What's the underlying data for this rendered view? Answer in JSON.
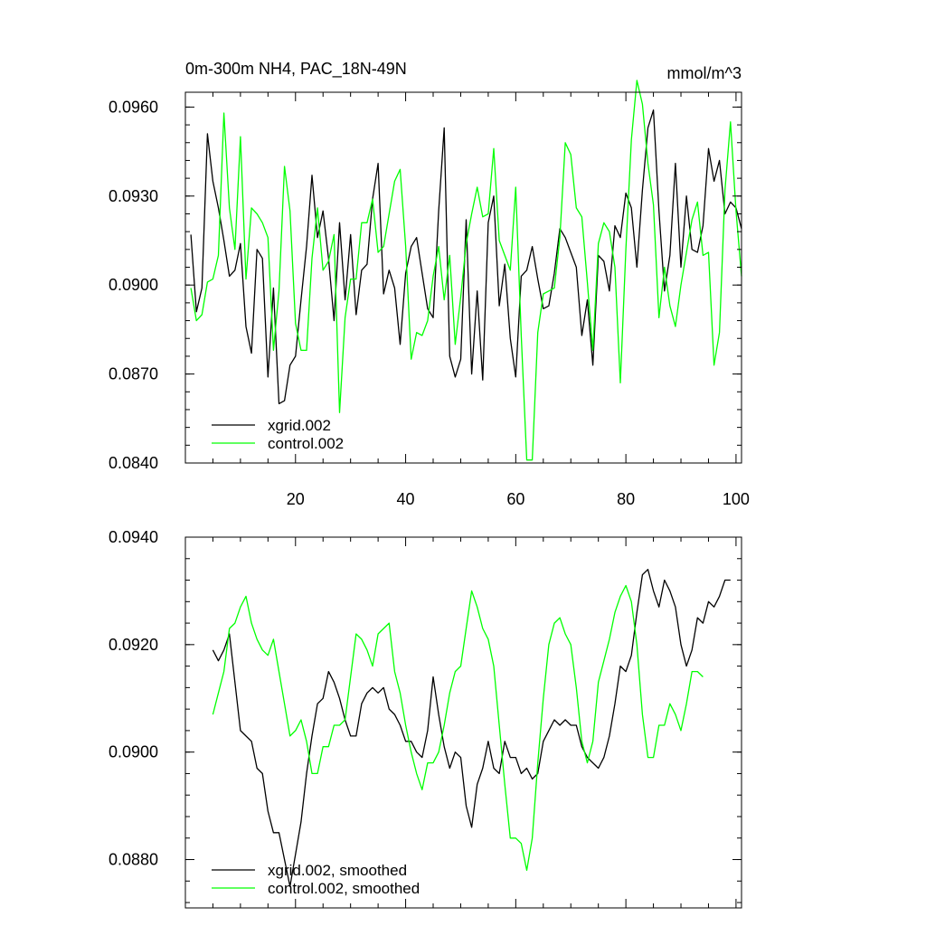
{
  "colors": {
    "xgrid": "#000000",
    "control": "#00ff00"
  },
  "chart_data": [
    {
      "type": "line",
      "title": "0m-300m NH4, PAC_18N-49N",
      "units": "mmol/m^3",
      "xlabel": "",
      "ylabel": "",
      "xlim": [
        0,
        101
      ],
      "ylim": [
        0.084,
        0.0965
      ],
      "grid": false,
      "legend_placement": "bottom-left",
      "x_ticks": [
        20,
        40,
        60,
        80,
        100
      ],
      "x_tick_labels": [
        "20",
        "40",
        "60",
        "80",
        "100"
      ],
      "y_ticks": [
        0.084,
        0.087,
        0.09,
        0.093,
        0.096
      ],
      "y_tick_labels": [
        "0.0840",
        "0.0870",
        "0.0900",
        "0.0930",
        "0.0960"
      ],
      "x_start": 1,
      "series": [
        {
          "name": "xgrid.002",
          "color_key": "xgrid",
          "values": [
            0.0917,
            0.0891,
            0.0899,
            0.0951,
            0.0935,
            0.0926,
            0.0915,
            0.0903,
            0.0905,
            0.0914,
            0.0886,
            0.0877,
            0.0912,
            0.0909,
            0.0869,
            0.0899,
            0.086,
            0.0861,
            0.0873,
            0.0876,
            0.0895,
            0.0913,
            0.0937,
            0.0916,
            0.0925,
            0.0909,
            0.0888,
            0.0921,
            0.0895,
            0.0917,
            0.089,
            0.0905,
            0.0907,
            0.0929,
            0.0941,
            0.0897,
            0.0905,
            0.0899,
            0.088,
            0.0904,
            0.0913,
            0.0916,
            0.0904,
            0.0892,
            0.0889,
            0.0925,
            0.0953,
            0.0876,
            0.0869,
            0.0875,
            0.0922,
            0.087,
            0.0898,
            0.0868,
            0.0921,
            0.093,
            0.0893,
            0.0907,
            0.0882,
            0.0869,
            0.0903,
            0.0905,
            0.0913,
            0.0902,
            0.0892,
            0.0893,
            0.0904,
            0.0919,
            0.0916,
            0.0911,
            0.0906,
            0.0883,
            0.0895,
            0.0873,
            0.091,
            0.0908,
            0.0898,
            0.092,
            0.0916,
            0.0931,
            0.0926,
            0.0906,
            0.0932,
            0.0953,
            0.0959,
            0.0925,
            0.0898,
            0.091,
            0.0941,
            0.0906,
            0.093,
            0.0912,
            0.0911,
            0.092,
            0.0946,
            0.0935,
            0.0942,
            0.0924,
            0.0928,
            0.0926,
            0.0919
          ]
        },
        {
          "name": "control.002",
          "color_key": "control",
          "values": [
            0.0899,
            0.0888,
            0.089,
            0.0901,
            0.0902,
            0.091,
            0.0958,
            0.0926,
            0.0912,
            0.095,
            0.0902,
            0.0926,
            0.0924,
            0.0921,
            0.0916,
            0.0878,
            0.0898,
            0.094,
            0.0925,
            0.0887,
            0.0878,
            0.0878,
            0.0909,
            0.0926,
            0.0905,
            0.0908,
            0.0917,
            0.0857,
            0.0889,
            0.0902,
            0.0902,
            0.0921,
            0.0921,
            0.0929,
            0.0911,
            0.0913,
            0.0924,
            0.0935,
            0.0939,
            0.0913,
            0.0875,
            0.0884,
            0.0883,
            0.0888,
            0.0903,
            0.0913,
            0.0895,
            0.091,
            0.088,
            0.0896,
            0.0914,
            0.0924,
            0.0933,
            0.0923,
            0.0924,
            0.0946,
            0.0915,
            0.091,
            0.0905,
            0.0933,
            0.0883,
            0.0841,
            0.0841,
            0.0884,
            0.0897,
            0.0898,
            0.0899,
            0.0916,
            0.0948,
            0.0944,
            0.0926,
            0.0923,
            0.0901,
            0.0878,
            0.0914,
            0.0921,
            0.0918,
            0.0906,
            0.0867,
            0.0912,
            0.0949,
            0.0969,
            0.0961,
            0.0941,
            0.0927,
            0.0889,
            0.0906,
            0.0893,
            0.0886,
            0.09,
            0.0911,
            0.0922,
            0.0928,
            0.091,
            0.0911,
            0.0873,
            0.0884,
            0.0932,
            0.0955,
            0.0925,
            0.0903
          ]
        }
      ]
    },
    {
      "type": "line",
      "title": "",
      "xlabel": "",
      "ylabel": "",
      "xlim": [
        0,
        101
      ],
      "ylim": [
        0.0871,
        0.094
      ],
      "grid": false,
      "legend_placement": "bottom-left",
      "x_ticks": [
        20,
        40,
        60,
        80,
        100
      ],
      "x_tick_labels": [],
      "y_ticks": [
        0.088,
        0.09,
        0.092,
        0.094
      ],
      "y_tick_labels": [
        "0.0880",
        "0.0900",
        "0.0920",
        "0.0940"
      ],
      "x_start": 5,
      "series": [
        {
          "name": "xgrid.002, smoothed",
          "color_key": "xgrid",
          "values": [
            0.0919,
            0.0917,
            0.0919,
            0.0922,
            0.0913,
            0.0904,
            0.0903,
            0.0902,
            0.0897,
            0.0896,
            0.0889,
            0.0885,
            0.0885,
            0.088,
            0.0875,
            0.0881,
            0.0887,
            0.0896,
            0.0903,
            0.0909,
            0.091,
            0.0915,
            0.0913,
            0.091,
            0.0906,
            0.0903,
            0.0903,
            0.0909,
            0.0911,
            0.0912,
            0.0911,
            0.0912,
            0.0908,
            0.0907,
            0.0905,
            0.0902,
            0.0902,
            0.09,
            0.0899,
            0.0904,
            0.0914,
            0.0907,
            0.0901,
            0.0897,
            0.09,
            0.0899,
            0.089,
            0.0886,
            0.0894,
            0.0897,
            0.0902,
            0.0897,
            0.0896,
            0.0902,
            0.0899,
            0.0899,
            0.0896,
            0.0897,
            0.0895,
            0.0896,
            0.0902,
            0.0904,
            0.0906,
            0.0905,
            0.0906,
            0.0905,
            0.0905,
            0.0901,
            0.0899,
            0.0898,
            0.0897,
            0.0899,
            0.0903,
            0.0909,
            0.0916,
            0.0915,
            0.0918,
            0.0926,
            0.0933,
            0.0934,
            0.093,
            0.0927,
            0.0932,
            0.093,
            0.0927,
            0.092,
            0.0916,
            0.0919,
            0.0925,
            0.0924,
            0.0928,
            0.0927,
            0.0929,
            0.0932,
            0.0932
          ]
        },
        {
          "name": "control.002, smoothed",
          "color_key": "control",
          "values": [
            0.0907,
            0.0911,
            0.0915,
            0.0923,
            0.0924,
            0.0927,
            0.0929,
            0.0924,
            0.0921,
            0.0919,
            0.0918,
            0.0921,
            0.0915,
            0.0909,
            0.0903,
            0.0904,
            0.0906,
            0.0902,
            0.0896,
            0.0896,
            0.0901,
            0.0901,
            0.0905,
            0.0905,
            0.0906,
            0.0914,
            0.0922,
            0.0921,
            0.0919,
            0.0916,
            0.0922,
            0.0923,
            0.0924,
            0.0915,
            0.0911,
            0.0905,
            0.09,
            0.0896,
            0.0893,
            0.0898,
            0.0898,
            0.09,
            0.0905,
            0.0911,
            0.0915,
            0.0916,
            0.0923,
            0.093,
            0.0927,
            0.0923,
            0.0921,
            0.0916,
            0.0905,
            0.0894,
            0.0884,
            0.0884,
            0.0883,
            0.0878,
            0.0884,
            0.0898,
            0.091,
            0.092,
            0.0924,
            0.0925,
            0.0922,
            0.092,
            0.0912,
            0.0902,
            0.0898,
            0.0902,
            0.0913,
            0.0917,
            0.0921,
            0.0926,
            0.0929,
            0.0931,
            0.0928,
            0.092,
            0.0907,
            0.0899,
            0.0899,
            0.0905,
            0.0905,
            0.0909,
            0.0907,
            0.0904,
            0.0909,
            0.0915,
            0.0915,
            0.0914
          ]
        }
      ]
    }
  ]
}
